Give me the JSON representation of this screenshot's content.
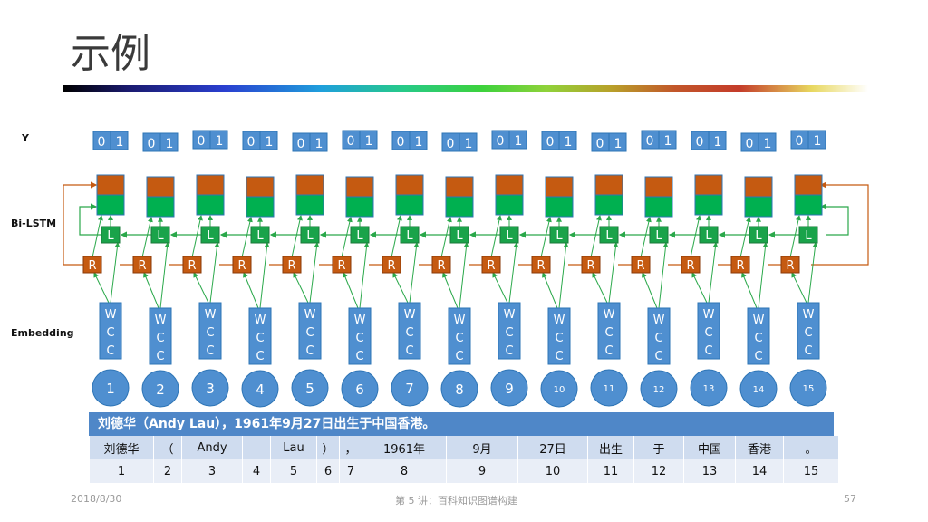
{
  "slide": {
    "title": "示例",
    "labels": {
      "y": "Y",
      "bilstm": "Bi-LSTM",
      "embedding": "Embedding"
    },
    "output_digits": [
      "0",
      "1"
    ],
    "l_label": "L",
    "r_label": "R",
    "emb_lines": [
      "W",
      "C",
      "C"
    ],
    "token_ids": [
      "1",
      "2",
      "3",
      "4",
      "5",
      "6",
      "7",
      "8",
      "9",
      "10",
      "11",
      "12",
      "13",
      "14",
      "15"
    ],
    "caption": "刘德华（Andy Lau），1961年9月27日出生于中国香港。",
    "tokens": [
      "刘德华",
      "（",
      "Andy",
      "",
      "Lau",
      "）",
      "，",
      "1961年",
      "9月",
      "27日",
      "出生",
      "于",
      "中国",
      "香港",
      "。"
    ],
    "token_indices": [
      "1",
      "2",
      "3",
      "4",
      "5",
      "6",
      "7",
      "8",
      "9",
      "10",
      "11",
      "12",
      "13",
      "14",
      "15"
    ],
    "footer": {
      "date": "2018/8/30",
      "center": "第 5 讲：百科知识图谱构建",
      "page": "57"
    }
  },
  "colors": {
    "blue_box": "#4f8fd0",
    "orange": "#c55a11",
    "green_cell": "#00b050",
    "lstm_green": "#1aa34a",
    "r_orange": "#c55a11",
    "arrow_green": "#2aa84a",
    "arrow_orange": "#c55a11",
    "header_blue": "#4f87c8"
  }
}
